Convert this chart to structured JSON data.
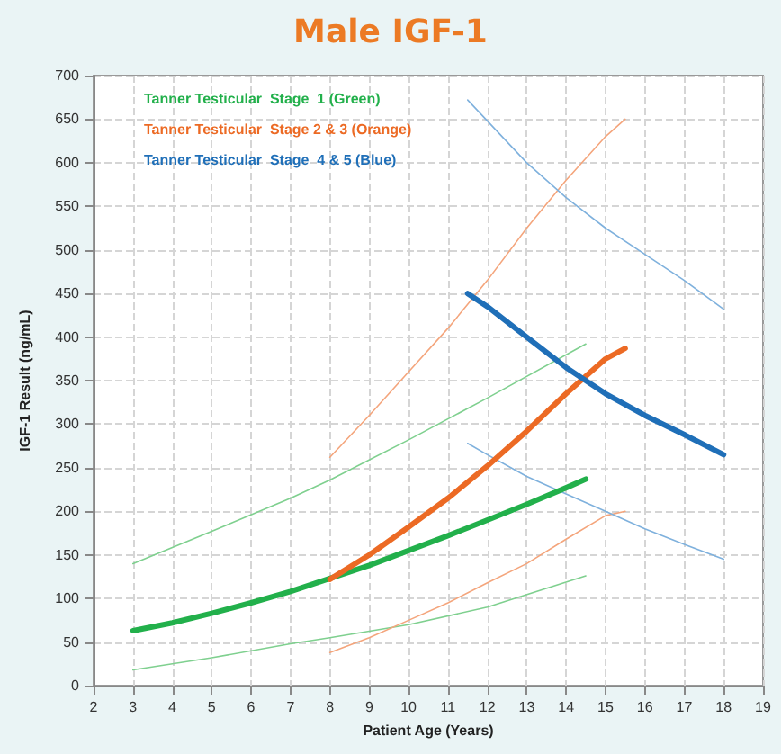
{
  "chart_data": {
    "type": "line",
    "title": "Male IGF-1",
    "xlabel": "Patient Age (Years)",
    "ylabel": "IGF-1 Result (ng/mL)",
    "xlim": [
      2,
      19
    ],
    "xticks": [
      2,
      3,
      4,
      5,
      6,
      7,
      8,
      9,
      10,
      11,
      12,
      13,
      14,
      15,
      16,
      17,
      18,
      19
    ],
    "ylim": [
      0,
      700
    ],
    "yticks": [
      0,
      50,
      100,
      150,
      200,
      250,
      300,
      350,
      400,
      450,
      500,
      550,
      600,
      650,
      700
    ],
    "grid": true,
    "legend": "top left",
    "marker": "none",
    "line_style": "solid",
    "series": [
      {
        "name": "Tanner Testicular  Stage  1 (Green)",
        "color": "#22b04b",
        "x": [
          3,
          4,
          5,
          6,
          7,
          8,
          9,
          10,
          11,
          12,
          13,
          14,
          14.5
        ],
        "values": [
          63,
          72,
          83,
          95,
          108,
          123,
          138,
          155,
          172,
          190,
          208,
          227,
          237
        ]
      },
      {
        "name": "Tanner Testicular  Stage 2 & 3 (Orange)",
        "color": "#ec6a24",
        "x": [
          8,
          9,
          10,
          11,
          12,
          13,
          14,
          15,
          15.5
        ],
        "values": [
          122,
          150,
          182,
          215,
          252,
          292,
          335,
          375,
          387
        ]
      },
      {
        "name": "Tanner Testicular  Stage  4 & 5 (Blue)",
        "color": "#1f6fb8",
        "x": [
          11.5,
          12,
          13,
          14,
          15,
          16,
          17,
          18
        ],
        "values": [
          450,
          435,
          400,
          365,
          335,
          310,
          288,
          265
        ]
      },
      {
        "color": "#7fd08f",
        "x": [
          3,
          5,
          7,
          8,
          10,
          12,
          14.5
        ],
        "values": [
          140,
          177,
          215,
          236,
          282,
          330,
          392
        ]
      },
      {
        "color": "#7fd08f",
        "x": [
          3,
          5,
          7,
          8,
          10,
          12,
          14.5
        ],
        "values": [
          18,
          32,
          48,
          55,
          70,
          90,
          126
        ]
      },
      {
        "color": "#f4a57c",
        "x": [
          8,
          9,
          10,
          11,
          12,
          13,
          14,
          15,
          15.5
        ],
        "values": [
          262,
          310,
          360,
          410,
          465,
          525,
          580,
          630,
          650
        ]
      },
      {
        "color": "#f4a57c",
        "x": [
          8,
          9,
          10,
          11,
          12,
          13,
          14,
          15,
          15.5
        ],
        "values": [
          38,
          55,
          75,
          95,
          118,
          140,
          168,
          195,
          200
        ]
      },
      {
        "color": "#7fb1dd",
        "x": [
          11.5,
          13,
          14,
          15,
          16,
          17,
          18
        ],
        "values": [
          672,
          600,
          560,
          525,
          495,
          465,
          432
        ]
      },
      {
        "color": "#7fb1dd",
        "x": [
          11.5,
          12,
          13,
          14,
          15,
          16,
          17,
          18
        ],
        "values": [
          278,
          265,
          240,
          220,
          200,
          180,
          162,
          145
        ]
      }
    ]
  }
}
